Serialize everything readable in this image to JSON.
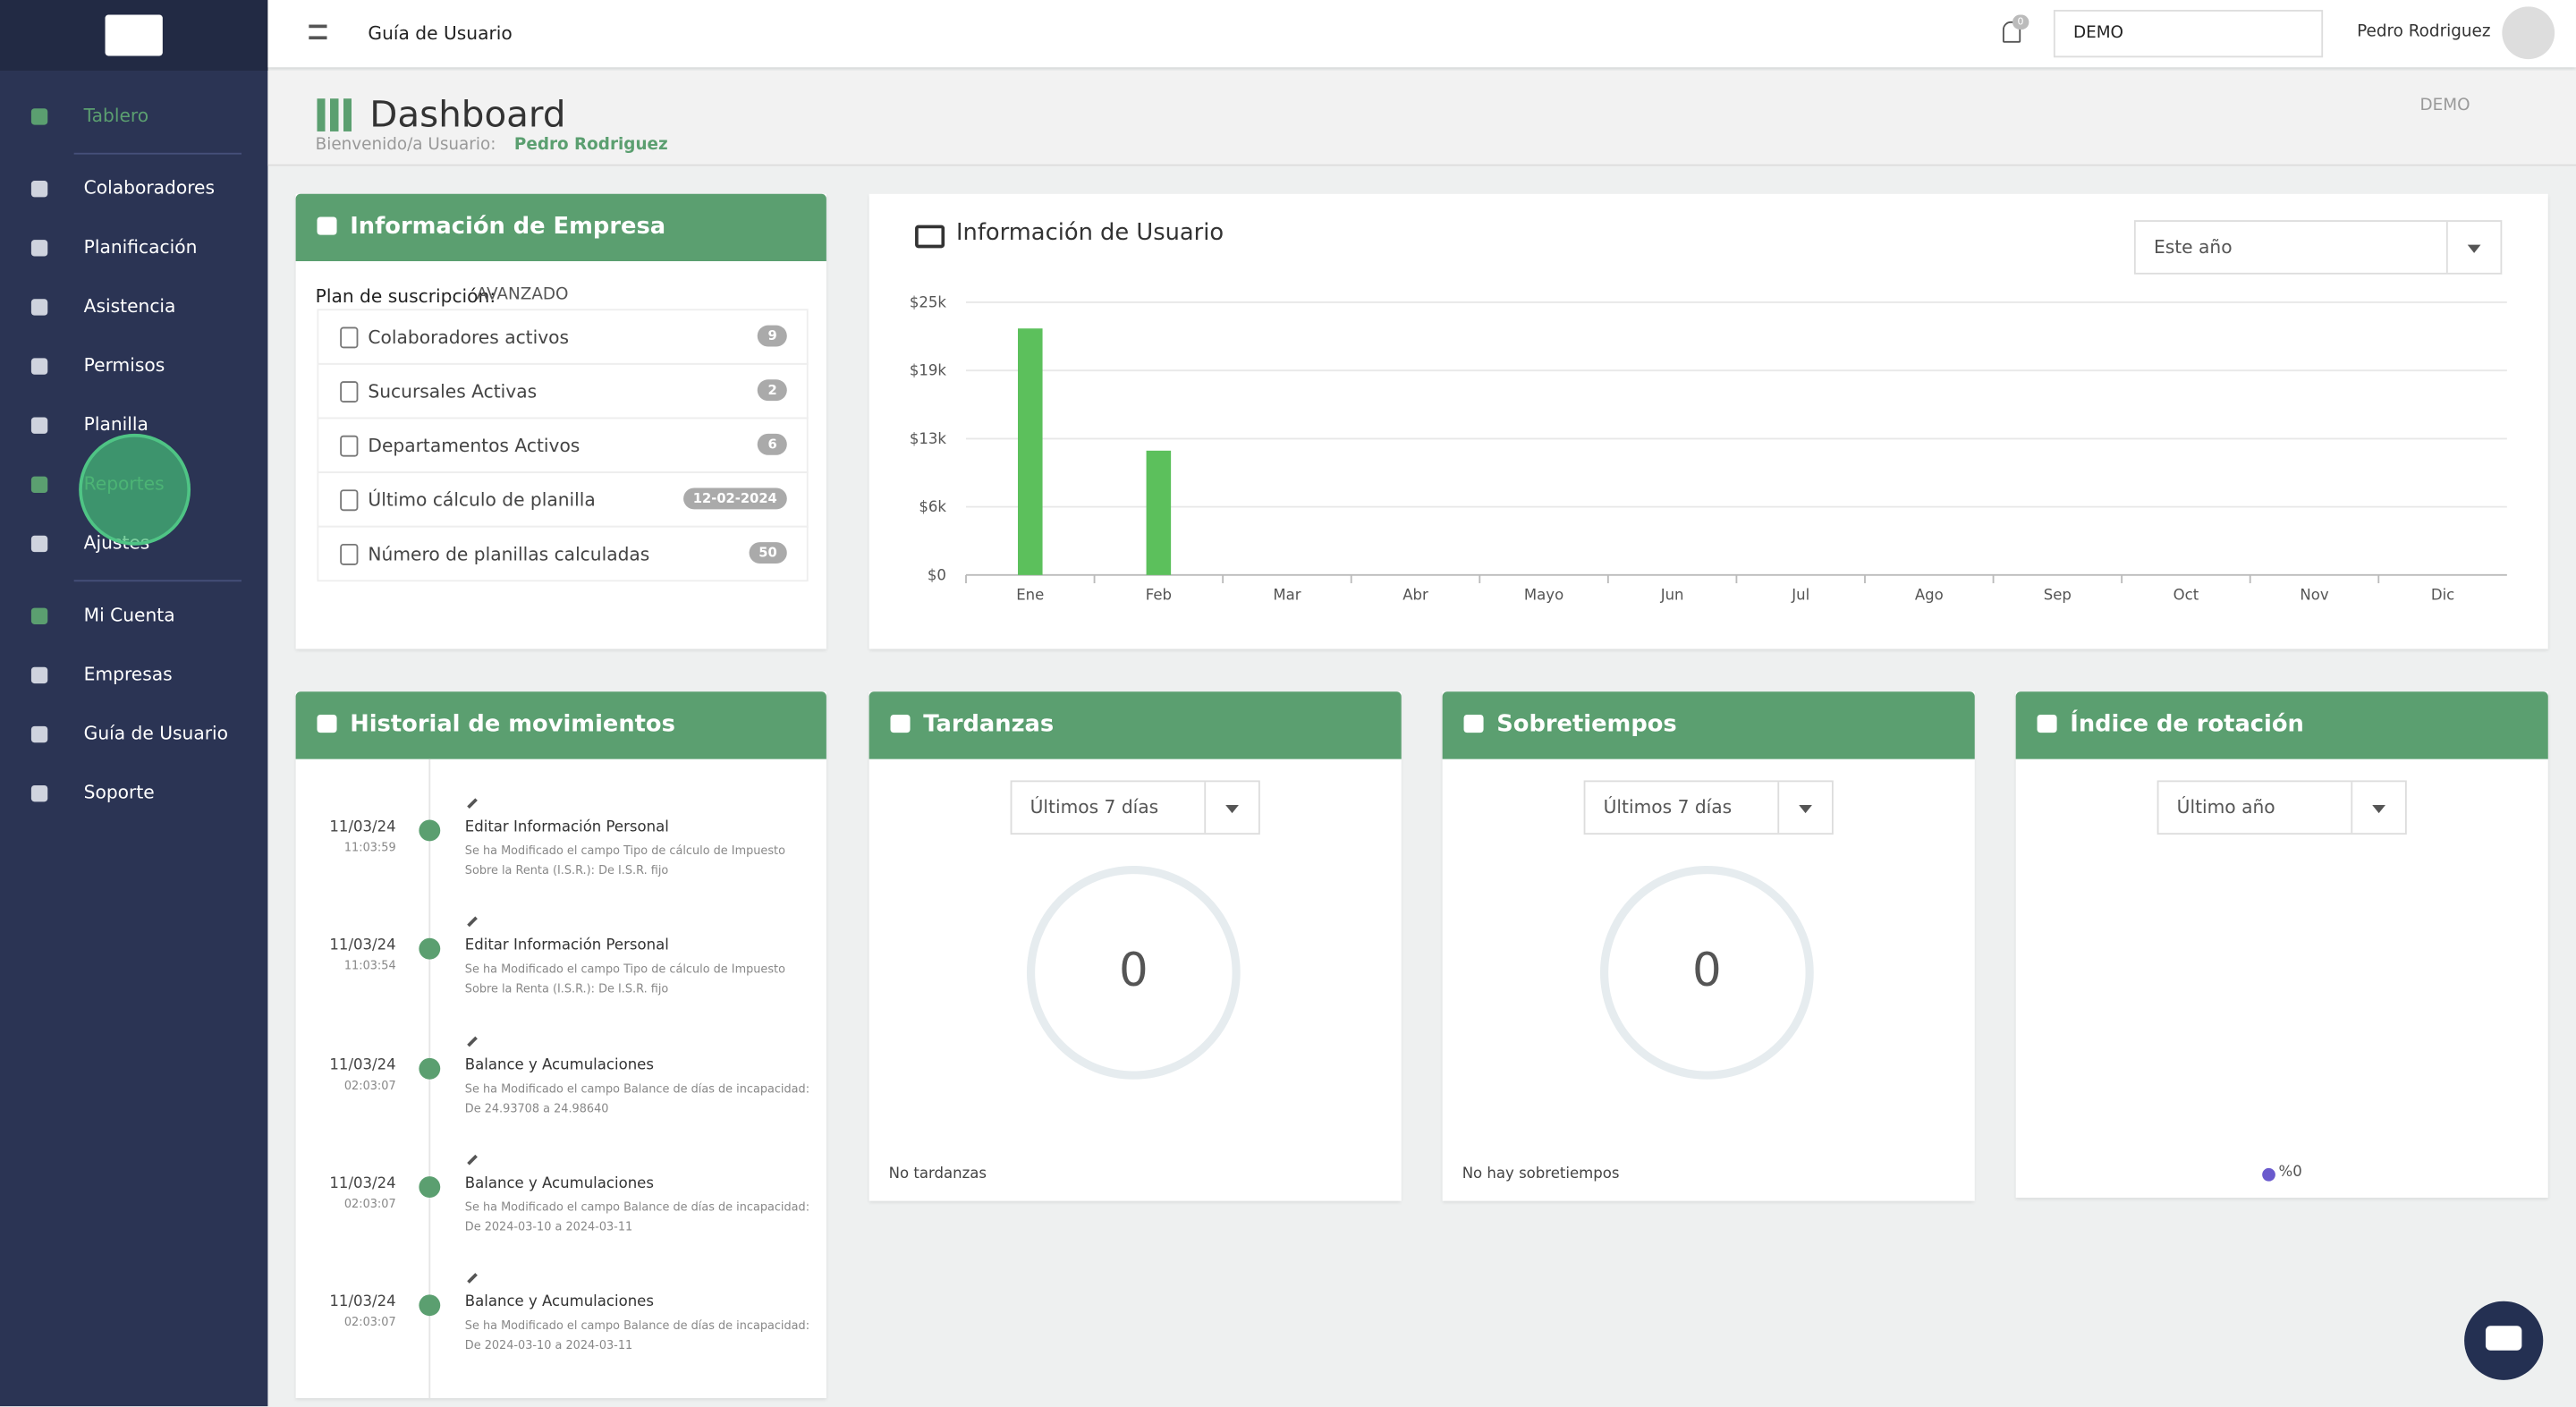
{
  "sidebar": {
    "items": [
      "Tablero",
      "Colaboradores",
      "Planificación",
      "Asistencia",
      "Permisos",
      "Planilla",
      "Reportes",
      "Ajustes",
      "Mi Cuenta",
      "Empresas",
      "Guía de Usuario",
      "Soporte"
    ]
  },
  "topbar": {
    "title": "Guía de Usuario",
    "notifications": 0,
    "company_select": "DEMO",
    "user": "Pedro Rodriguez"
  },
  "header": {
    "title": "Dashboard",
    "welcome_label": "Bienvenido/a Usuario:",
    "user": "Pedro Rodriguez",
    "badge": "DEMO"
  },
  "company_info": {
    "title": "Información de Empresa",
    "plan_label": "Plan de suscripción:",
    "plan": "AVANZADO",
    "items": [
      {
        "label": "Colaboradores activos",
        "badge": 9
      },
      {
        "label": "Sucursales Activas",
        "badge": 2
      },
      {
        "label": "Departamentos Activos",
        "badge": 6
      },
      {
        "label": "Último cálculo de planilla",
        "badge": "12-02-2024"
      },
      {
        "label": "Número de planillas calculadas",
        "badge": 50
      }
    ]
  },
  "user_info": {
    "title": "Información de Usuario",
    "filter": "Este año",
    "chart": {
      "type": "bar",
      "categories": [
        "Ene",
        "Feb",
        "Mar",
        "Abr",
        "Mayo",
        "Jun",
        "Jul",
        "Ago",
        "Sep",
        "Oct",
        "Nov",
        "Dic"
      ],
      "values": [
        22600,
        11400,
        0,
        0,
        0,
        0,
        0,
        0,
        0,
        0,
        0,
        0
      ],
      "color": "#5cc05c",
      "ylim": [
        0,
        25000
      ],
      "yticks": [
        {
          "value": 0,
          "label": "$0"
        },
        {
          "value": 6250,
          "label": "$6k"
        },
        {
          "value": 12500,
          "label": "$13k"
        },
        {
          "value": 18750,
          "label": "$19k"
        },
        {
          "value": 25000,
          "label": "$25k"
        }
      ],
      "grid": true
    }
  },
  "movements": {
    "title": "Historial de movimientos",
    "items": [
      {
        "date": "11/03/24",
        "time": "11:03:59",
        "title": "Editar Información Personal",
        "desc": "Se ha Modificado el campo Tipo de cálculo de Impuesto Sobre la Renta (I.S.R.): De I.S.R. fijo"
      },
      {
        "date": "11/03/24",
        "time": "11:03:54",
        "title": "Editar Información Personal",
        "desc": "Se ha Modificado el campo Tipo de cálculo de Impuesto Sobre la Renta (I.S.R.): De I.S.R. fijo"
      },
      {
        "date": "11/03/24",
        "time": "02:03:07",
        "title": "Balance y Acumulaciones",
        "desc": "Se ha Modificado el campo Balance de días de incapacidad: De 24.93708 a 24.98640"
      },
      {
        "date": "11/03/24",
        "time": "02:03:07",
        "title": "Balance y Acumulaciones",
        "desc": "Se ha Modificado el campo Balance de días de incapacidad: De 2024-03-10 a 2024-03-11"
      },
      {
        "date": "11/03/24",
        "time": "02:03:07",
        "title": "Balance y Acumulaciones",
        "desc": "Se ha Modificado el campo Balance de días de incapacidad: De 2024-03-10 a 2024-03-11"
      }
    ]
  },
  "tardanzas": {
    "title": "Tardanzas",
    "filter": "Últimos 7 días",
    "value": 0,
    "note": "No tardanzas"
  },
  "sobretiempos": {
    "title": "Sobretiempos",
    "filter": "Últimos 7 días",
    "value": 0,
    "note": "No hay sobretiempos"
  },
  "rotacion": {
    "title": "Índice de rotación",
    "filter": "Último año",
    "legend": "%0"
  }
}
